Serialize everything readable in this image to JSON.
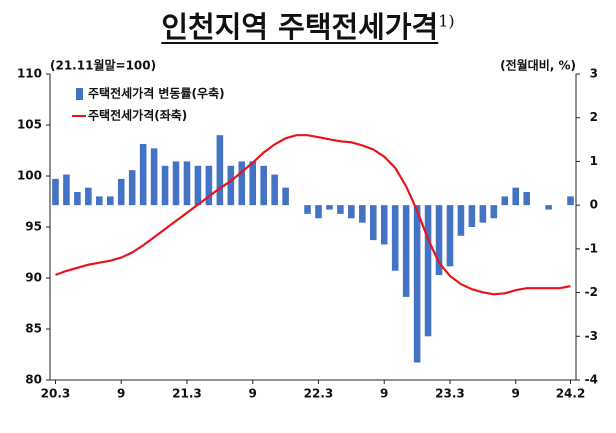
{
  "chart_data": {
    "type": "bar_line",
    "title": "인천지역 주택전세가격",
    "title_note": "1)",
    "ylabel": "(21.11월말=100)",
    "y2label": "(전월대비, %)",
    "categories": [
      "20.3",
      null,
      null,
      null,
      null,
      null,
      "9",
      null,
      null,
      null,
      null,
      null,
      "21.3",
      null,
      null,
      null,
      null,
      null,
      "9",
      null,
      null,
      null,
      null,
      null,
      "22.3",
      null,
      null,
      null,
      null,
      null,
      "9",
      null,
      null,
      null,
      null,
      null,
      "23.3",
      null,
      null,
      null,
      null,
      null,
      "9",
      null,
      null,
      null,
      null,
      "24.2"
    ],
    "series": [
      {
        "name": "주택전세가격 변동률(우축)",
        "type": "bar",
        "axis": "y2",
        "color": "#4472c4",
        "values": [
          0.6,
          0.7,
          0.3,
          0.4,
          0.2,
          0.2,
          0.6,
          0.8,
          1.4,
          1.3,
          0.9,
          1.0,
          1.0,
          0.9,
          0.9,
          1.6,
          0.9,
          1.0,
          1.0,
          0.9,
          0.7,
          0.4,
          0.0,
          -0.2,
          -0.3,
          -0.1,
          -0.2,
          -0.3,
          -0.4,
          -0.8,
          -0.9,
          -1.5,
          -2.1,
          -3.6,
          -3.0,
          -1.6,
          -1.4,
          -0.7,
          -0.5,
          -0.4,
          -0.3,
          0.2,
          0.4,
          0.3,
          0.0,
          -0.1,
          0.0,
          0.2
        ]
      },
      {
        "name": "주택전세가격(좌축)",
        "type": "line",
        "axis": "y",
        "color": "#e8141b",
        "values": [
          90.3,
          90.7,
          91.0,
          91.3,
          91.5,
          91.7,
          92.0,
          92.5,
          93.2,
          94.0,
          94.8,
          95.6,
          96.4,
          97.2,
          98.0,
          98.8,
          99.5,
          100.4,
          101.3,
          102.3,
          103.1,
          103.7,
          104.0,
          104.0,
          103.8,
          103.6,
          103.4,
          103.3,
          103.0,
          102.6,
          101.9,
          100.8,
          99.0,
          96.6,
          93.8,
          91.5,
          90.2,
          89.4,
          88.9,
          88.6,
          88.4,
          88.5,
          88.8,
          89.0,
          89.0,
          89.0,
          89.0,
          89.2
        ]
      }
    ],
    "ylim": [
      80,
      110
    ],
    "yticks": [
      80,
      85,
      90,
      95,
      100,
      105,
      110
    ],
    "y2lim": [
      -4,
      3
    ],
    "y2ticks": [
      -4,
      -3,
      -2,
      -1,
      0,
      1,
      2,
      3
    ],
    "grid": false,
    "legend": "upper left"
  }
}
